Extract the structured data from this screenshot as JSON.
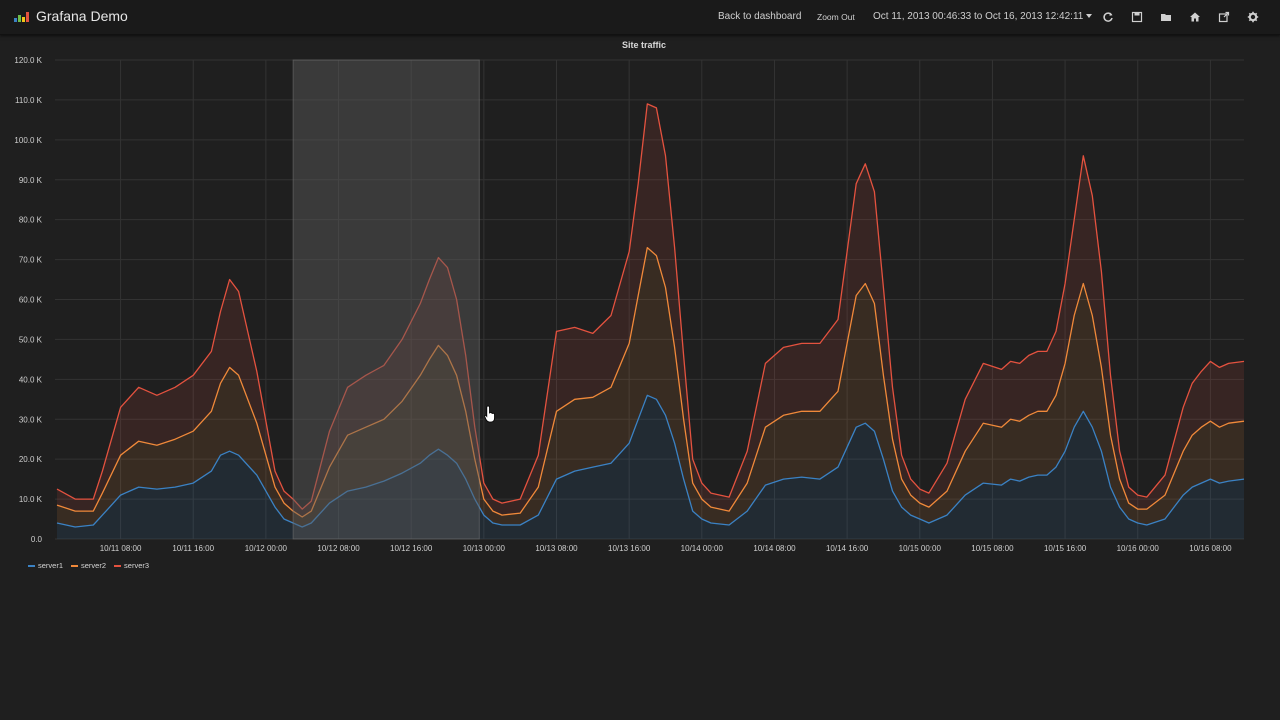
{
  "header": {
    "title": "Grafana Demo",
    "back_label": "Back to dashboard",
    "zoom_out_label": "Zoom Out",
    "time_range": "Oct 11, 2013 00:46:33 to Oct 16, 2013 12:42:11",
    "icons": [
      "refresh-icon",
      "save-icon",
      "open-folder-icon",
      "home-icon",
      "share-icon",
      "settings-icon"
    ]
  },
  "panel": {
    "title": "Site traffic"
  },
  "colors": {
    "server1": "#3b82c4",
    "server2": "#f0893a",
    "server3": "#e4523f",
    "selection": "#5a5a5a"
  },
  "chart_data": {
    "type": "area",
    "title": "Site traffic",
    "xlabel": "",
    "ylabel": "",
    "stacked": true,
    "ylim": [
      0,
      120000
    ],
    "yticks": [
      "0.0",
      "10.0 K",
      "20.0 K",
      "30.0 K",
      "40.0 K",
      "50.0 K",
      "60.0 K",
      "70.0 K",
      "80.0 K",
      "90.0 K",
      "100.0 K",
      "110.0 K",
      "120.0 K"
    ],
    "x_start_hour": 0.78,
    "x_end_hour": 131.7,
    "xticks": [
      {
        "label": "10/11 08:00",
        "hour": 8
      },
      {
        "label": "10/11 16:00",
        "hour": 16
      },
      {
        "label": "10/12 00:00",
        "hour": 24
      },
      {
        "label": "10/12 08:00",
        "hour": 32
      },
      {
        "label": "10/12 16:00",
        "hour": 40
      },
      {
        "label": "10/13 00:00",
        "hour": 48
      },
      {
        "label": "10/13 08:00",
        "hour": 56
      },
      {
        "label": "10/13 16:00",
        "hour": 64
      },
      {
        "label": "10/14 00:00",
        "hour": 72
      },
      {
        "label": "10/14 08:00",
        "hour": 80
      },
      {
        "label": "10/14 16:00",
        "hour": 88
      },
      {
        "label": "10/15 00:00",
        "hour": 96
      },
      {
        "label": "10/15 08:00",
        "hour": 104
      },
      {
        "label": "10/15 16:00",
        "hour": 112
      },
      {
        "label": "10/16 00:00",
        "hour": 120
      },
      {
        "label": "10/16 08:00",
        "hour": 128
      }
    ],
    "selection_hours": [
      27.0,
      47.5
    ],
    "legend_position": "bottom-left",
    "grid": true,
    "x": [
      1,
      3,
      5,
      6,
      8,
      10,
      12,
      14,
      16,
      18,
      19,
      20,
      21,
      23,
      25,
      26,
      27,
      28,
      29,
      31,
      33,
      35,
      37,
      39,
      41,
      42,
      43,
      44,
      45,
      46,
      47,
      48,
      49,
      50,
      52,
      54,
      56,
      58,
      60,
      62,
      64,
      65,
      66,
      67,
      68,
      69,
      70,
      71,
      72,
      73,
      75,
      77,
      79,
      81,
      83,
      85,
      87,
      88,
      89,
      90,
      91,
      92,
      93,
      94,
      95,
      96,
      97,
      99,
      101,
      103,
      105,
      106,
      107,
      108,
      109,
      110,
      111,
      112,
      113,
      114,
      115,
      116,
      117,
      118,
      119,
      120,
      121,
      123,
      125,
      126,
      127,
      128,
      129,
      130,
      131.7
    ],
    "series": [
      {
        "name": "server1",
        "values": [
          4000,
          3000,
          3500,
          6000,
          11000,
          13000,
          12500,
          13000,
          14000,
          17000,
          21000,
          22000,
          21000,
          16000,
          8000,
          5000,
          4000,
          3000,
          4000,
          9000,
          12000,
          13000,
          14500,
          16500,
          19000,
          21000,
          22500,
          21000,
          19000,
          15000,
          10000,
          6000,
          4000,
          3500,
          3500,
          6000,
          15000,
          17000,
          18000,
          19000,
          24000,
          30000,
          36000,
          35000,
          31000,
          24000,
          15000,
          7000,
          5000,
          4000,
          3500,
          7000,
          13500,
          15000,
          15500,
          15000,
          18000,
          23000,
          28000,
          29000,
          27000,
          20000,
          12000,
          8000,
          6000,
          5000,
          4000,
          6000,
          11000,
          14000,
          13500,
          15000,
          14500,
          15500,
          16000,
          16000,
          18000,
          22000,
          28000,
          32000,
          28000,
          22000,
          13000,
          8000,
          5000,
          4000,
          3500,
          5000,
          11000,
          13000,
          14000,
          15000,
          14000,
          14500,
          15000
        ]
      },
      {
        "name": "server2",
        "values": [
          4500,
          4000,
          3500,
          5500,
          10000,
          11500,
          11000,
          12000,
          13000,
          15000,
          18000,
          21000,
          20000,
          13000,
          5000,
          4000,
          3000,
          2500,
          3000,
          9000,
          14000,
          15000,
          15500,
          18000,
          22000,
          24000,
          26000,
          25000,
          22000,
          17000,
          10000,
          4000,
          3000,
          2500,
          3000,
          7000,
          17000,
          18000,
          17500,
          19000,
          25000,
          31000,
          37000,
          36000,
          32000,
          24000,
          15000,
          7000,
          5000,
          4000,
          3500,
          7000,
          14500,
          16000,
          16500,
          17000,
          19000,
          26000,
          33000,
          35000,
          32000,
          21000,
          13000,
          7000,
          5000,
          4000,
          4000,
          6000,
          11000,
          15000,
          14500,
          15000,
          15000,
          15500,
          16000,
          16000,
          18000,
          22000,
          28000,
          32000,
          28000,
          21000,
          13000,
          7000,
          4000,
          3500,
          4000,
          6000,
          11000,
          13000,
          14000,
          14500,
          14000,
          14500,
          14500
        ]
      },
      {
        "name": "server3",
        "values": [
          4000,
          3000,
          3000,
          5500,
          12000,
          13500,
          12500,
          13000,
          14000,
          15000,
          18000,
          22000,
          21000,
          13000,
          4000,
          3000,
          3000,
          2000,
          2500,
          9000,
          12000,
          13000,
          13500,
          15500,
          18000,
          20000,
          22000,
          22000,
          19000,
          14000,
          8000,
          4000,
          3000,
          3000,
          3500,
          8000,
          20000,
          18000,
          16000,
          18000,
          23000,
          28000,
          36000,
          37000,
          33000,
          25000,
          16000,
          6000,
          4000,
          3500,
          3500,
          8000,
          16000,
          17000,
          17000,
          17000,
          18000,
          23000,
          28000,
          30000,
          28000,
          22000,
          13000,
          6000,
          4000,
          3500,
          3500,
          7000,
          13000,
          15000,
          14500,
          14500,
          14500,
          15000,
          15000,
          15000,
          16000,
          20000,
          24000,
          32000,
          30000,
          24000,
          15000,
          7000,
          4000,
          3500,
          3000,
          5000,
          11000,
          13000,
          14000,
          15000,
          15000,
          15000,
          15000
        ]
      }
    ]
  },
  "legend": {
    "items": [
      "server1",
      "server2",
      "server3"
    ]
  }
}
